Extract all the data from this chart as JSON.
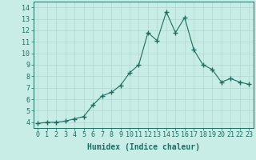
{
  "x": [
    0,
    1,
    2,
    3,
    4,
    5,
    6,
    7,
    8,
    9,
    10,
    11,
    12,
    13,
    14,
    15,
    16,
    17,
    18,
    19,
    20,
    21,
    22,
    23
  ],
  "y": [
    3.9,
    4.0,
    4.0,
    4.1,
    4.3,
    4.5,
    5.5,
    6.3,
    6.6,
    7.2,
    8.3,
    9.0,
    11.8,
    11.1,
    13.6,
    11.8,
    13.1,
    10.3,
    9.0,
    8.6,
    7.5,
    7.8,
    7.5,
    7.3
  ],
  "line_color": "#1a7060",
  "marker": "+",
  "marker_size": 4,
  "marker_linewidth": 1.0,
  "bg_color": "#c8ece6",
  "grid_color": "#b0d8d0",
  "xlabel": "Humidex (Indice chaleur)",
  "xlim": [
    -0.5,
    23.5
  ],
  "ylim": [
    3.5,
    14.5
  ],
  "yticks": [
    4,
    5,
    6,
    7,
    8,
    9,
    10,
    11,
    12,
    13,
    14
  ],
  "xticks": [
    0,
    1,
    2,
    3,
    4,
    5,
    6,
    7,
    8,
    9,
    10,
    11,
    12,
    13,
    14,
    15,
    16,
    17,
    18,
    19,
    20,
    21,
    22,
    23
  ],
  "tick_color": "#1a7060",
  "label_color": "#1a7060",
  "xlabel_fontsize": 7,
  "tick_fontsize": 6,
  "linewidth": 0.8
}
